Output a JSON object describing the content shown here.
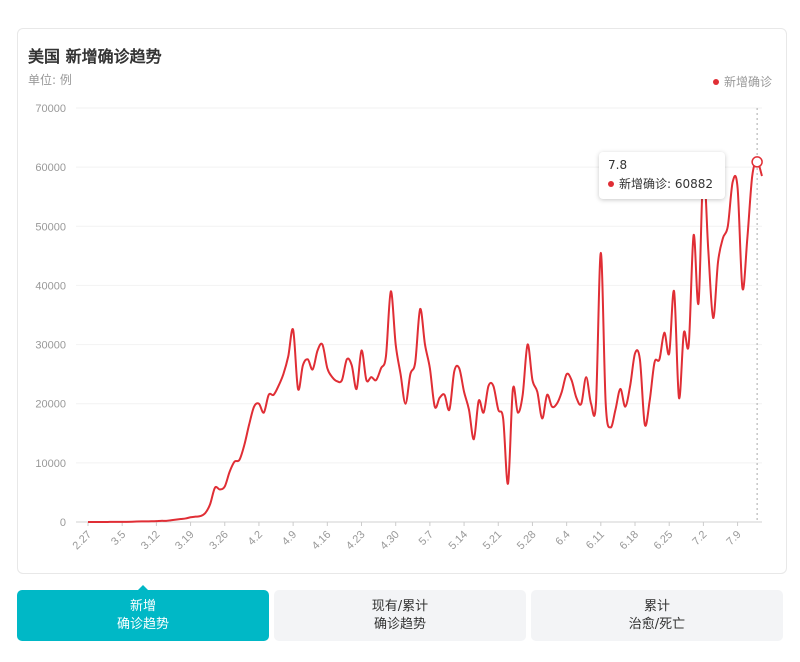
{
  "header": {
    "title": "美国 新增确诊趋势",
    "unit": "单位: 例",
    "legend_label": "新增确诊"
  },
  "colors": {
    "series": "#e02e35",
    "accent": "#00b8c6"
  },
  "tooltip": {
    "date": "7.8",
    "label": "新增确诊: 60882"
  },
  "tabs": [
    {
      "line1": "新增",
      "line2": "确诊趋势",
      "active": true
    },
    {
      "line1": "现有/累计",
      "line2": "确诊趋势",
      "active": false
    },
    {
      "line1": "累计",
      "line2": "治愈/死亡",
      "active": false
    }
  ],
  "chart_data": {
    "type": "line",
    "title": "美国 新增确诊趋势",
    "ylabel": "单位: 例",
    "ylim": [
      0,
      70000
    ],
    "yticks": [
      0,
      10000,
      20000,
      30000,
      40000,
      50000,
      60000,
      70000
    ],
    "xticks": [
      "2.27",
      "3.5",
      "3.12",
      "3.19",
      "3.26",
      "4.2",
      "4.9",
      "4.16",
      "4.23",
      "4.30",
      "5.7",
      "5.14",
      "5.21",
      "5.28",
      "6.4",
      "6.11",
      "6.18",
      "6.25",
      "7.2",
      "7.9"
    ],
    "x_start_label": "2.27",
    "grid": true,
    "legend_position": "top-right",
    "series": [
      {
        "name": "新增确诊",
        "values": [
          5,
          5,
          5,
          10,
          10,
          15,
          15,
          20,
          30,
          50,
          80,
          100,
          100,
          120,
          150,
          200,
          200,
          300,
          400,
          500,
          600,
          800,
          900,
          1000,
          1500,
          3000,
          5800,
          5500,
          6000,
          8500,
          10200,
          10500,
          13000,
          16500,
          19500,
          20000,
          18500,
          21500,
          21500,
          23000,
          25000,
          28000,
          32500,
          22500,
          26500,
          27500,
          25800,
          29000,
          30000,
          26000,
          24500,
          23800,
          24000,
          27500,
          26500,
          22500,
          29000,
          24000,
          24500,
          24000,
          26000,
          28000,
          39000,
          30000,
          25000,
          20000,
          25000,
          27000,
          36000,
          30000,
          26000,
          19500,
          21000,
          21500,
          19000,
          25500,
          26000,
          22000,
          19000,
          14000,
          20500,
          18500,
          23000,
          23000,
          19000,
          17500,
          6500,
          22500,
          18500,
          21500,
          30000,
          24000,
          22000,
          17500,
          21500,
          19500,
          20000,
          22000,
          25000,
          24000,
          21000,
          20000,
          24500,
          20000,
          20000,
          45500,
          20000,
          16000,
          19000,
          22500,
          19500,
          23000,
          28500,
          27500,
          16500,
          20500,
          27000,
          27500,
          32000,
          28500,
          39000,
          21000,
          32000,
          30000,
          48500,
          37000,
          59500,
          46000,
          34500,
          44000,
          48000,
          50000,
          57500,
          56500,
          39500,
          48000,
          58500,
          60882,
          58500
        ]
      }
    ],
    "highlight": {
      "date": "7.8",
      "value": 60882
    }
  }
}
